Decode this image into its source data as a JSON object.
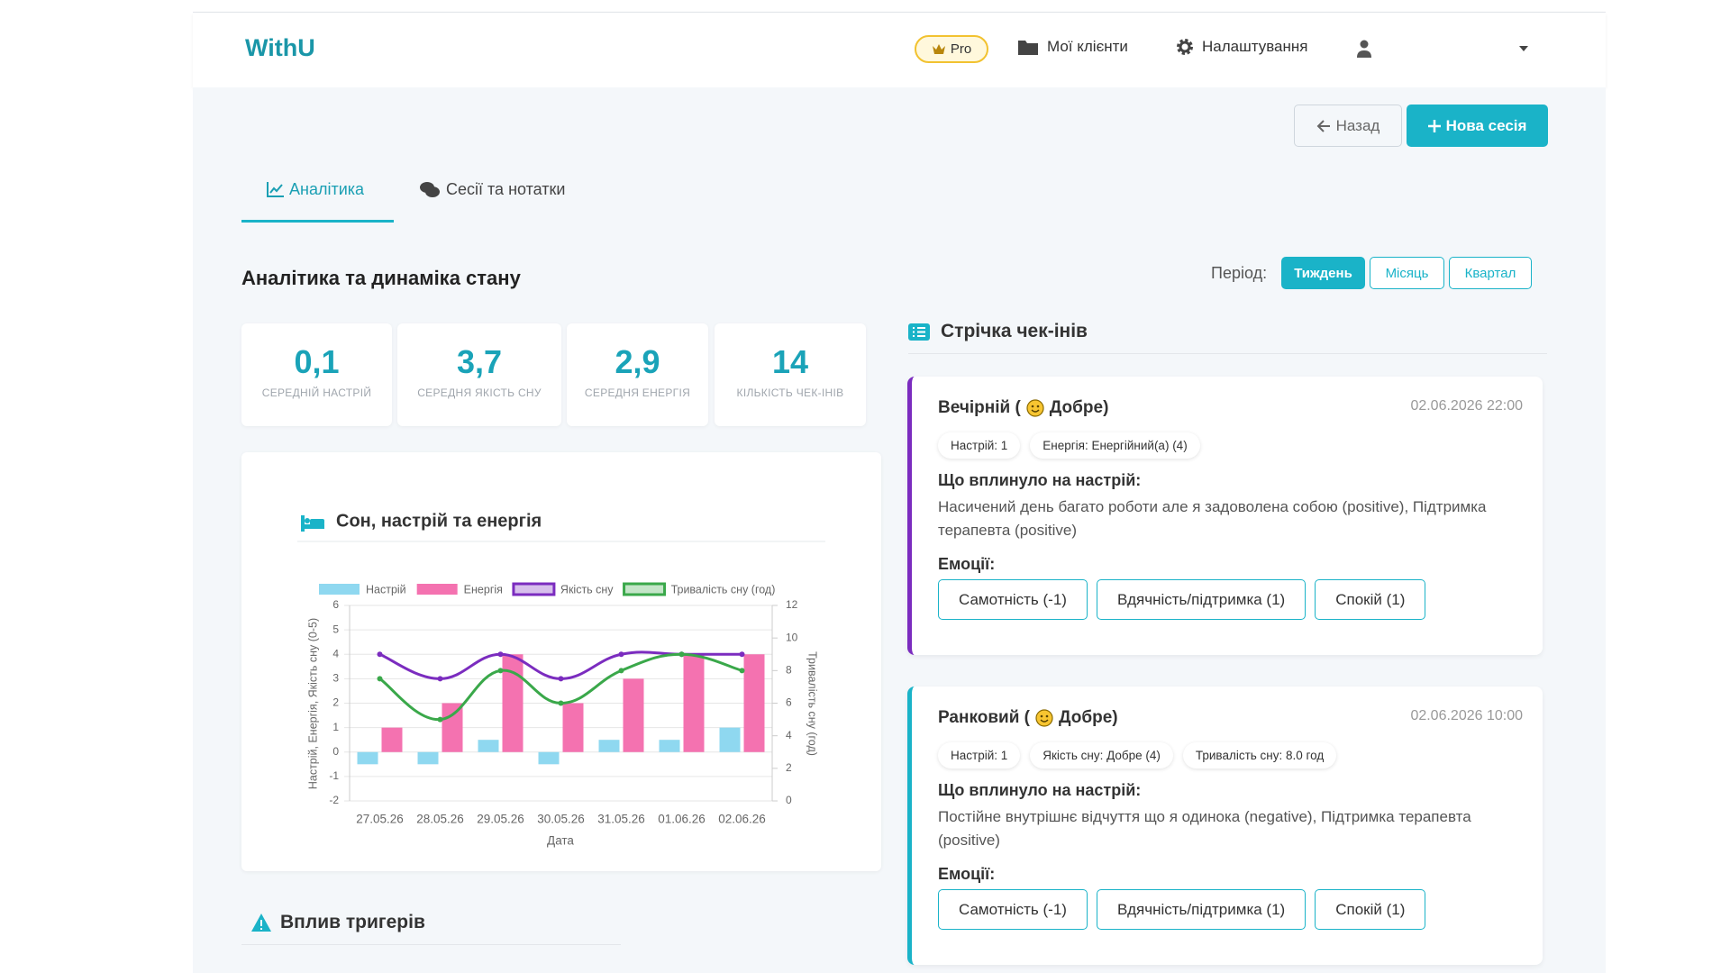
{
  "header": {
    "logo": "WithU",
    "pro": "Pro",
    "clients": "Мої клієнти",
    "settings": "Налаштування"
  },
  "actions": {
    "back": "Назад",
    "new_session": "Нова сесія"
  },
  "tabs": [
    "Аналітика",
    "Сесії та нотатки"
  ],
  "section_title": "Аналітика та динаміка стану",
  "period": {
    "label": "Період:",
    "options": [
      "Тиждень",
      "Місяць",
      "Квартал"
    ]
  },
  "stats": [
    {
      "value": "0,1",
      "label": "СЕРЕДНІЙ НАСТРІЙ"
    },
    {
      "value": "3,7",
      "label": "СЕРЕДНЯ ЯКІСТЬ СНУ"
    },
    {
      "value": "2,9",
      "label": "СЕРЕДНЯ ЕНЕРГІЯ"
    },
    {
      "value": "14",
      "label": "КІЛЬКІСТЬ ЧЕК-ІНІВ"
    }
  ],
  "chart_data": {
    "type": "bar",
    "title": "Сон, настрій та енергія",
    "x_label": "Дата",
    "y_label": "Настрій, Енергія, Якість сну (0-5)",
    "y2_label": "Тривалість сну (год)",
    "categories": [
      "27.05.26",
      "28.05.26",
      "29.05.26",
      "30.05.26",
      "31.05.26",
      "01.06.26",
      "02.06.26"
    ],
    "series": [
      {
        "name": "Настрій",
        "type": "bar",
        "color": "#8fd8f0",
        "values": [
          -0.5,
          -0.5,
          0.5,
          -0.5,
          0.5,
          0.5,
          1
        ]
      },
      {
        "name": "Енергія",
        "type": "bar",
        "color": "#f472b0",
        "values": [
          1,
          2,
          4,
          2,
          3,
          4,
          4
        ]
      },
      {
        "name": "Якість сну",
        "type": "line",
        "color": "#7b2cbf",
        "values": [
          4,
          3,
          4,
          3,
          4,
          4,
          4
        ]
      },
      {
        "name": "Тривалість сну (год)",
        "type": "line",
        "color": "#3aa84a",
        "axis": "y2",
        "values": [
          7.5,
          5,
          8,
          6,
          8,
          9,
          8
        ]
      }
    ],
    "ylim": [
      -2,
      6
    ],
    "yticks": [
      -2,
      -1,
      0,
      1,
      2,
      3,
      4,
      5,
      6
    ],
    "y2lim": [
      0,
      12
    ],
    "y2ticks": [
      0,
      2,
      4,
      6,
      8,
      10,
      12
    ],
    "grid": true
  },
  "triggers_title": "Вплив тригерів",
  "feed": {
    "title": "Стрічка чек-інів",
    "checkins": [
      {
        "title": "Вечірній (",
        "mood": "Добре)",
        "datetime": "02.06.2026 22:00",
        "tags": [
          "Настрій: 1",
          "Енергія: Енергійний(а) (4)"
        ],
        "influence_heading": "Що вплинуло на настрій:",
        "influence_text": "Насичений день багато роботи але я задоволена собою (positive), Підтримка терапевта (positive)",
        "emotions_heading": "Емоції:",
        "emotions": [
          "Самотність (-1)",
          "Вдячність/підтримка (1)",
          "Спокій (1)"
        ]
      },
      {
        "title": "Ранковий (",
        "mood": "Добре)",
        "datetime": "02.06.2026 10:00",
        "tags": [
          "Настрій: 1",
          "Якість сну: Добре (4)",
          "Тривалість сну: 8.0 год"
        ],
        "influence_heading": "Що вплинуло на настрій:",
        "influence_text": "Постійне внутрішнє відчуття що я одинока (negative), Підтримка терапевта (positive)",
        "emotions_heading": "Емоції:",
        "emotions": [
          "Самотність (-1)",
          "Вдячність/підтримка (1)",
          "Спокій (1)"
        ]
      }
    ]
  }
}
